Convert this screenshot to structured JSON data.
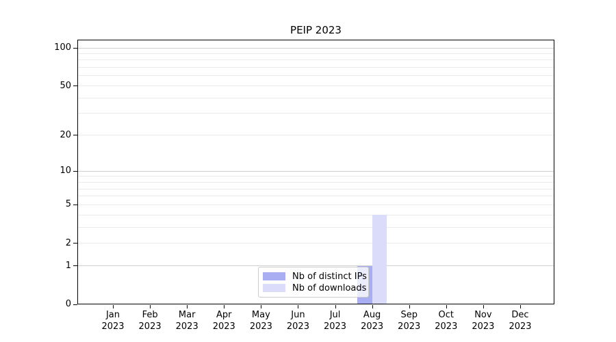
{
  "chart_data": {
    "type": "bar",
    "title": "PEIP 2023",
    "categories": [
      "Jan 2023",
      "Feb 2023",
      "Mar 2023",
      "Apr 2023",
      "May 2023",
      "Jun 2023",
      "Jul 2023",
      "Aug 2023",
      "Sep 2023",
      "Oct 2023",
      "Nov 2023",
      "Dec 2023"
    ],
    "series": [
      {
        "name": "Nb of distinct IPs",
        "color": "#a9adf1",
        "values": [
          0,
          0,
          0,
          0,
          0,
          0,
          0,
          1,
          0,
          0,
          0,
          0
        ]
      },
      {
        "name": "Nb of downloads",
        "color": "#dadcf9",
        "values": [
          0,
          0,
          0,
          0,
          0,
          0,
          0,
          4,
          0,
          0,
          0,
          0
        ]
      }
    ],
    "xlabel": "",
    "ylabel": "",
    "y_axis": {
      "scale": "log1p",
      "ylim": [
        0,
        100
      ],
      "ticks": [
        0,
        1,
        2,
        5,
        10,
        20,
        50,
        100
      ],
      "major_gridlines": [
        1,
        10,
        100
      ],
      "minor_gridlines": [
        2,
        3,
        4,
        5,
        6,
        7,
        8,
        9,
        20,
        30,
        40,
        50,
        60,
        70,
        80,
        90
      ],
      "major_grid_color": "#cfcfcf",
      "minor_grid_color": "#ebebeb"
    },
    "legend_position": "lower center",
    "grid": true,
    "background_color": "#ffffff",
    "axis_color": "#000000"
  }
}
